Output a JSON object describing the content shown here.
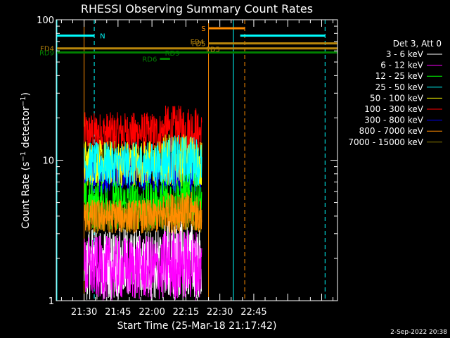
{
  "chart_data": {
    "type": "line",
    "title": "RHESSI Observing Summary Count Rates",
    "xlabel": "Start Time (25-Mar-18 21:17:42)",
    "ylabel": "Count Rate (s⁻¹ detector⁻¹)",
    "y_scale": "log",
    "ylim": [
      1,
      100
    ],
    "xlim_minutes_of_day": [
      1277.7,
      1402
    ],
    "x_ticks": [
      "21:30",
      "21:45",
      "22:00",
      "22:15",
      "22:30",
      "22:45"
    ],
    "x_tick_minutes": [
      1290,
      1305,
      1320,
      1335,
      1350,
      1365
    ],
    "y_ticks": [
      "1",
      "10",
      "100"
    ],
    "y_tick_values": [
      1,
      10,
      100
    ],
    "legend": {
      "title": "Det 3, Att 0",
      "placement": "right"
    },
    "data_window_minutes": [
      1290,
      1342
    ],
    "series": [
      {
        "name": "3 - 6 keV",
        "color": "#ffffff",
        "low": 1.0,
        "high": 3.3,
        "mid": 2.4
      },
      {
        "name": "6 - 12 keV",
        "color": "#ff00ff",
        "low": 1.0,
        "high": 2.9,
        "mid": 1.9
      },
      {
        "name": "12 - 25 keV",
        "color": "#00ff00",
        "low": 3.2,
        "high": 7.2,
        "mid": 5.0
      },
      {
        "name": "25 - 50 keV",
        "color": "#00ffff",
        "low": 6.5,
        "high": 13.5,
        "mid": 9.5
      },
      {
        "name": "50 - 100 keV",
        "color": "#ffff00",
        "low": 6.5,
        "high": 14.0,
        "mid": 9.5
      },
      {
        "name": "100 - 300 keV",
        "color": "#ff0000",
        "low": 11.0,
        "high": 22.0,
        "mid": 14.5
      },
      {
        "name": "300 - 800 keV",
        "color": "#0000ff",
        "low": 5.8,
        "high": 11.0,
        "mid": 8.3
      },
      {
        "name": "800 - 7000 keV",
        "color": "#ff8c00",
        "low": 3.0,
        "high": 5.3,
        "mid": 4.2
      },
      {
        "name": "7000 - 15000 keV",
        "color": "#8b7a00",
        "low": 3.0,
        "high": 5.0,
        "mid": 4.0
      }
    ],
    "flags": [
      {
        "label": "N",
        "color": "#00ffff",
        "x_start": 1278.0,
        "x_end": 1294.5,
        "y": 77,
        "label_side": "right"
      },
      {
        "label": "",
        "color": "#00ffff",
        "x_start": 1359.0,
        "x_end": 1396.5,
        "y": 77,
        "label_side": "none"
      },
      {
        "label": "S",
        "color": "#ff8c00",
        "x_start": 1345.0,
        "x_end": 1361.0,
        "y": 87,
        "label_side": "left"
      },
      {
        "label": "FD4",
        "color": "#b8860b",
        "x_start": 1278.0,
        "x_end": 1402.0,
        "y": 62.5,
        "label_side": "none"
      },
      {
        "label": "FD5",
        "color": "#b8860b",
        "x_start": 1345.0,
        "x_end": 1402.0,
        "y": 67.8,
        "label_side": "none"
      },
      {
        "label": "RD6",
        "color": "#008000",
        "x_start": 1323.5,
        "x_end": 1328.0,
        "y": 52.7,
        "label_side": "left"
      },
      {
        "label": "RD9",
        "color": "#008000",
        "x_start": 1278.0,
        "x_end": 1402.0,
        "y": 58.5,
        "label_side": "none"
      }
    ],
    "flag_labels": [
      {
        "text": "FD4",
        "color": "#b8860b",
        "x": 1340,
        "y": 70
      },
      {
        "text": "FD5",
        "color": "#b8860b",
        "x": 1347,
        "y": 62
      },
      {
        "text": "RD9",
        "color": "#008000",
        "x": 1329,
        "y": 58
      }
    ],
    "vertical_lines": [
      {
        "x": 1278.0,
        "color": "#00ffff",
        "dashed": false
      },
      {
        "x": 1294.5,
        "color": "#00ffff",
        "dashed": true
      },
      {
        "x": 1290.0,
        "color": "#ff8c00",
        "dashed": false
      },
      {
        "x": 1345.0,
        "color": "#ff8c00",
        "dashed": false
      },
      {
        "x": 1356.0,
        "color": "#00ffff",
        "dashed": false
      },
      {
        "x": 1361.0,
        "color": "#ff8c00",
        "dashed": true
      },
      {
        "x": 1396.5,
        "color": "#00ffff",
        "dashed": true
      }
    ]
  },
  "footer": {
    "date_stamp": "2-Sep-2022 20:38"
  }
}
